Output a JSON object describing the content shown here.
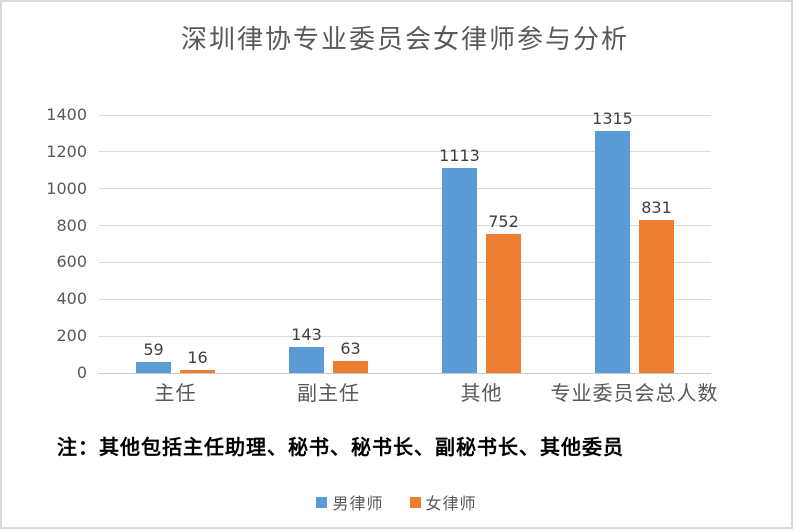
{
  "page": {
    "background": "#ffffff",
    "border_color": "#d9d9d9"
  },
  "chart_data": {
    "type": "bar",
    "title": "深圳律协专业委员会女律师参与分析",
    "categories": [
      "主任",
      "副主任",
      "其他",
      "专业委员会总人数"
    ],
    "series": [
      {
        "name": "男律师",
        "slug": "male-lawyers",
        "color": "#5B9BD5",
        "values": [
          59,
          143,
          1113,
          1315
        ]
      },
      {
        "name": "女律师",
        "slug": "female-lawyers",
        "color": "#ED7D31",
        "values": [
          16,
          63,
          752,
          831
        ]
      }
    ],
    "ylim": [
      0,
      1400
    ],
    "yticks": [
      0,
      200,
      400,
      600,
      800,
      1000,
      1200,
      1400
    ],
    "grid": true,
    "data_labels": true,
    "legend_position": "bottom",
    "note": "注：其他包括主任助理、秘书、秘书长、副秘书长、其他委员"
  },
  "colors": {
    "gridline": "#d9d9d9",
    "axis_text": "#595959",
    "data_label_text": "#404040",
    "title_text": "#595959",
    "note_text": "#000000"
  }
}
